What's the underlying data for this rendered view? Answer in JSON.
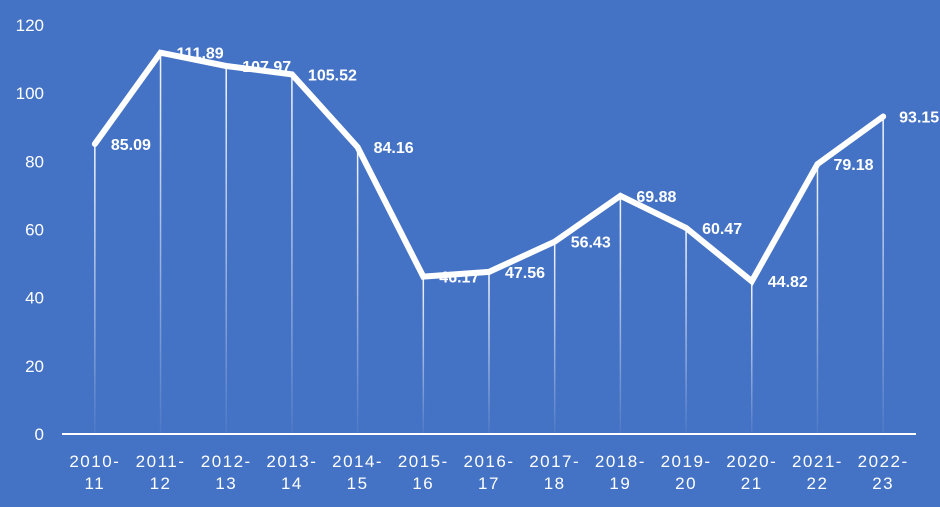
{
  "chart_data": {
    "type": "line",
    "categories": [
      [
        "2010-",
        "11"
      ],
      [
        "2011-",
        "12"
      ],
      [
        "2012-",
        "13"
      ],
      [
        "2013-",
        "14"
      ],
      [
        "2014-",
        "15"
      ],
      [
        "2015-",
        "16"
      ],
      [
        "2016-",
        "17"
      ],
      [
        "2017-",
        "18"
      ],
      [
        "2018-",
        "19"
      ],
      [
        "2019-",
        "20"
      ],
      [
        "2020-",
        "21"
      ],
      [
        "2021-",
        "22"
      ],
      [
        "2022-",
        "23"
      ]
    ],
    "series": [
      {
        "values": [
          85.09,
          111.89,
          107.97,
          105.52,
          84.16,
          46.17,
          47.56,
          56.43,
          69.88,
          60.47,
          44.82,
          79.18,
          93.15
        ],
        "data_labels": [
          "85.09",
          "111.89",
          "107.97",
          "105.52",
          "84.16",
          "46.17",
          "47.56",
          "56.43",
          "69.88",
          "60.47",
          "44.82",
          "79.18",
          "93.15"
        ]
      }
    ],
    "ylim": [
      0,
      120
    ],
    "yticks": [
      0,
      20,
      40,
      60,
      80,
      100,
      120
    ],
    "title": "",
    "xlabel": "",
    "ylabel": "",
    "grid": false,
    "drop_lines": true,
    "legend": "none",
    "colors": {
      "background": "#4472C4",
      "line": "#FFFFFF",
      "text": "#FFFFFF",
      "axis": "#FFFFFF"
    }
  }
}
